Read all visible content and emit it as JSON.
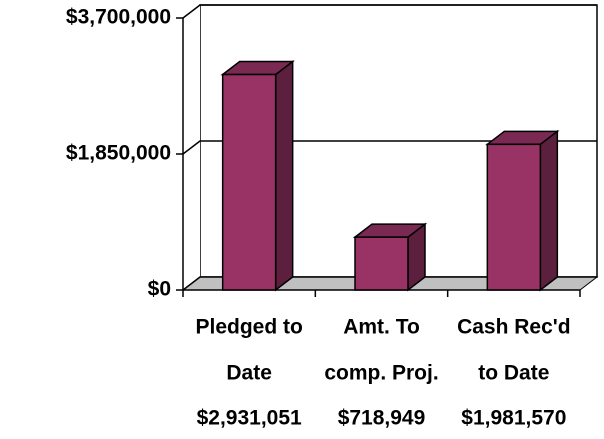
{
  "chart_data": {
    "type": "bar3d",
    "categories": [
      [
        "Pledged to",
        "Date"
      ],
      [
        "Amt. To",
        "comp. Proj."
      ],
      [
        "Cash Rec'd",
        "to Date"
      ]
    ],
    "values": [
      2931051,
      718949,
      1981570
    ],
    "value_labels": [
      "$2,931,051",
      "$718,949",
      "$1,981,570"
    ],
    "color": "#993366",
    "ylim": [
      0,
      3700000
    ],
    "yticks": [
      {
        "value": 0,
        "label": "$0"
      },
      {
        "value": 1850000,
        "label": "$1,850,000"
      },
      {
        "value": 3700000,
        "label": "$3,700,000"
      }
    ],
    "grid": true
  }
}
